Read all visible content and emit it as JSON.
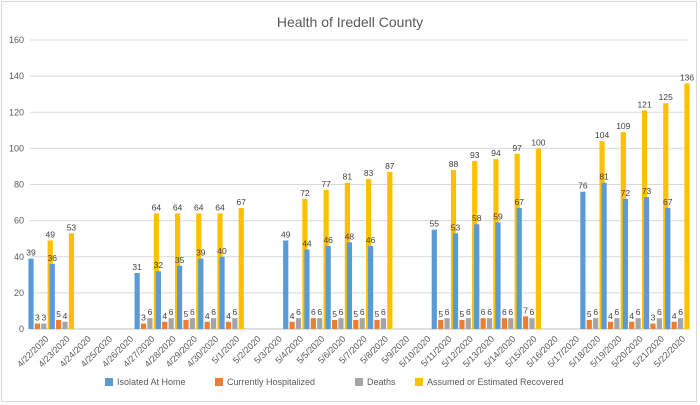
{
  "chart_data": {
    "type": "bar",
    "title": "Health of Iredell County",
    "xlabel": "",
    "ylabel": "",
    "ylim": [
      0,
      160
    ],
    "yticks": [
      0,
      20,
      40,
      60,
      80,
      100,
      120,
      140,
      160
    ],
    "grid": true,
    "legend_position": "bottom",
    "categories": [
      "4/22/2020",
      "4/23/2020",
      "4/24/2020",
      "4/25/2020",
      "4/26/2020",
      "4/27/2020",
      "4/28/2020",
      "4/29/2020",
      "4/30/2020",
      "5/1/2020",
      "5/2/2020",
      "5/3/2020",
      "5/4/2020",
      "5/5/2020",
      "5/6/2020",
      "5/7/2020",
      "5/8/2020",
      "5/9/2020",
      "5/10/2020",
      "5/11/2020",
      "5/12/2020",
      "5/13/2020",
      "5/14/2020",
      "5/15/2020",
      "5/16/2020",
      "5/17/2020",
      "5/18/2020",
      "5/19/2020",
      "5/20/2020",
      "5/21/2020",
      "5/22/2020"
    ],
    "series": [
      {
        "name": "Isolated At Home",
        "color": "#5b9bd5",
        "values": [
          39,
          36,
          null,
          null,
          null,
          31,
          32,
          35,
          39,
          40,
          null,
          null,
          49,
          44,
          46,
          48,
          46,
          null,
          null,
          55,
          53,
          58,
          59,
          67,
          null,
          null,
          76,
          81,
          72,
          73,
          67
        ]
      },
      {
        "name": "Currently Hospitalized",
        "color": "#ed7d31",
        "values": [
          3,
          5,
          null,
          null,
          null,
          3,
          4,
          5,
          4,
          4,
          null,
          null,
          4,
          6,
          5,
          5,
          5,
          null,
          null,
          5,
          5,
          6,
          6,
          7,
          null,
          null,
          5,
          4,
          4,
          3,
          4
        ]
      },
      {
        "name": "Deaths",
        "color": "#a5a5a5",
        "values": [
          3,
          4,
          null,
          null,
          null,
          6,
          6,
          6,
          6,
          6,
          null,
          null,
          6,
          6,
          6,
          6,
          6,
          null,
          null,
          6,
          6,
          6,
          6,
          6,
          null,
          null,
          6,
          6,
          6,
          6,
          6
        ]
      },
      {
        "name": "Assumed or Estimated Recovered",
        "color": "#ffc000",
        "values": [
          49,
          53,
          null,
          null,
          null,
          64,
          64,
          64,
          64,
          67,
          null,
          null,
          72,
          77,
          81,
          83,
          87,
          null,
          null,
          88,
          93,
          94,
          97,
          100,
          null,
          null,
          104,
          109,
          121,
          125,
          136
        ]
      }
    ]
  }
}
